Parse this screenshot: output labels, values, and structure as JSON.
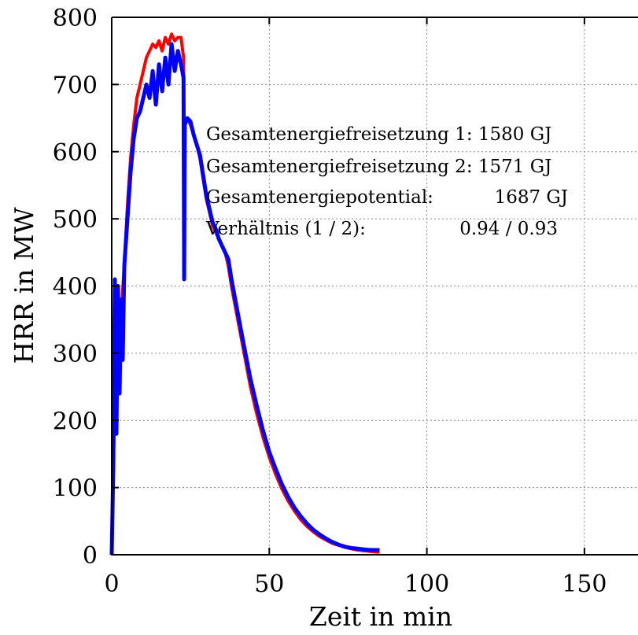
{
  "chart_data": {
    "type": "line",
    "title": "",
    "xlabel": "Zeit in min",
    "ylabel": "HRR in MW",
    "xlim": [
      0,
      167
    ],
    "ylim": [
      0,
      800
    ],
    "xticks": [
      0,
      50,
      100,
      150
    ],
    "yticks": [
      0,
      100,
      200,
      300,
      400,
      500,
      600,
      700,
      800
    ],
    "grid": true,
    "series": [
      {
        "name": "",
        "color": "#ff0000",
        "x": [
          0,
          0.5,
          1,
          2,
          3,
          4,
          5,
          6,
          7,
          8,
          9,
          10,
          11,
          12,
          13,
          14,
          15,
          16,
          17,
          18,
          19,
          20,
          21,
          22,
          22.8,
          23.0,
          23.2,
          24,
          25,
          26,
          27,
          28,
          29,
          30,
          31,
          32,
          33,
          34,
          35,
          36,
          37,
          38,
          39,
          40,
          42,
          44,
          46,
          48,
          50,
          52,
          54,
          56,
          58,
          60,
          62,
          64,
          66,
          68,
          70,
          72,
          74,
          76,
          78,
          80,
          82,
          84,
          85
        ],
        "y": [
          0,
          130,
          250,
          320,
          360,
          430,
          520,
          590,
          640,
          680,
          700,
          720,
          740,
          750,
          760,
          755,
          765,
          750,
          770,
          760,
          775,
          765,
          770,
          770,
          740,
          420,
          640,
          650,
          640,
          625,
          610,
          590,
          560,
          530,
          510,
          490,
          480,
          470,
          460,
          450,
          430,
          400,
          375,
          350,
          300,
          250,
          210,
          175,
          145,
          120,
          98,
          80,
          65,
          52,
          42,
          34,
          27,
          22,
          17,
          14,
          11,
          9,
          7,
          6,
          5,
          4,
          4
        ]
      },
      {
        "name": "",
        "color": "#0000ff",
        "x": [
          0,
          0.5,
          1,
          1.5,
          2,
          2.5,
          3,
          3.5,
          4,
          5,
          6,
          7,
          8,
          9,
          10,
          11,
          12,
          13,
          14,
          15,
          16,
          17,
          18,
          19,
          20,
          21,
          22,
          22.8,
          23.0,
          23.2,
          24,
          25,
          26,
          27,
          28,
          29,
          30,
          31,
          32,
          33,
          34,
          35,
          36,
          37,
          38,
          39,
          40,
          42,
          44,
          46,
          48,
          50,
          52,
          54,
          56,
          58,
          60,
          62,
          64,
          66,
          68,
          70,
          72,
          74,
          76,
          78,
          80,
          82,
          84,
          85
        ],
        "y": [
          0,
          130,
          410,
          180,
          400,
          240,
          380,
          290,
          430,
          500,
          570,
          620,
          650,
          660,
          680,
          700,
          680,
          720,
          670,
          730,
          690,
          740,
          700,
          760,
          720,
          750,
          730,
          710,
          410,
          640,
          650,
          645,
          625,
          610,
          595,
          565,
          535,
          515,
          495,
          485,
          470,
          460,
          450,
          440,
          410,
          385,
          360,
          310,
          262,
          222,
          185,
          153,
          128,
          105,
          86,
          70,
          57,
          46,
          37,
          30,
          24,
          19,
          15,
          12,
          10,
          9,
          8,
          7,
          7,
          7
        ]
      }
    ],
    "annotations": [
      {
        "text": "Gesamtenergiefreisetzung 1: 1580 GJ",
        "color": "#ff0000"
      },
      {
        "text": "Gesamtenergiefreisetzung 2: 1571 GJ",
        "color": "#0000ff"
      },
      {
        "text": "Gesamtenergiepotential:",
        "value": "1687 GJ",
        "color": "#000000"
      },
      {
        "text": "Verhältnis (1 / 2):",
        "value": "0.94 / 0.93",
        "color": "#000000"
      }
    ]
  }
}
